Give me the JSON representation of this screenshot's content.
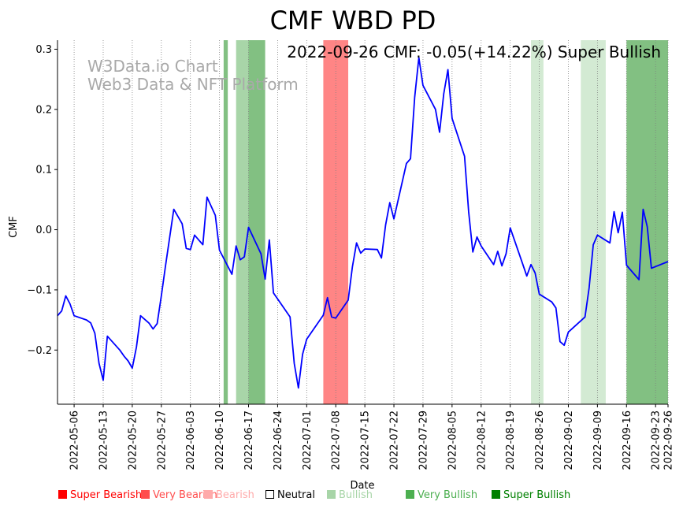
{
  "chart_data": {
    "type": "line",
    "title": "CMF WBD PD",
    "xlabel": "Date",
    "ylabel": "CMF",
    "ylim": [
      -0.29,
      0.315
    ],
    "xlim": [
      "2022-05-02",
      "2022-09-26"
    ],
    "grid": "vertical dotted at x ticks",
    "annotation": "2022-09-26 CMF: -0.05(+14.22%) Super Bullish",
    "watermark": [
      "W3Data.io Chart",
      "Web3 Data & NFT Platform"
    ],
    "y_ticks": [
      {
        "value": 0.3,
        "label": "0.3"
      },
      {
        "value": 0.2,
        "label": "0.2"
      },
      {
        "value": 0.1,
        "label": "0.1"
      },
      {
        "value": 0.0,
        "label": "0.0"
      },
      {
        "value": -0.1,
        "label": "−0.1"
      },
      {
        "value": -0.2,
        "label": "−0.2"
      }
    ],
    "x_ticks": [
      "2022-05-06",
      "2022-05-13",
      "2022-05-20",
      "2022-05-27",
      "2022-06-03",
      "2022-06-10",
      "2022-06-17",
      "2022-06-24",
      "2022-07-01",
      "2022-07-08",
      "2022-07-15",
      "2022-07-22",
      "2022-07-29",
      "2022-08-05",
      "2022-08-12",
      "2022-08-19",
      "2022-08-26",
      "2022-09-02",
      "2022-09-09",
      "2022-09-16",
      "2022-09-23",
      "2022-09-26"
    ],
    "series": [
      {
        "name": "CMF",
        "color": "#0000ff",
        "points": [
          [
            "2022-05-02",
            -0.143
          ],
          [
            "2022-05-03",
            -0.135
          ],
          [
            "2022-05-04",
            -0.11
          ],
          [
            "2022-05-05",
            -0.123
          ],
          [
            "2022-05-06",
            -0.143
          ],
          [
            "2022-05-09",
            -0.15
          ],
          [
            "2022-05-10",
            -0.155
          ],
          [
            "2022-05-11",
            -0.172
          ],
          [
            "2022-05-12",
            -0.222
          ],
          [
            "2022-05-13",
            -0.25
          ],
          [
            "2022-05-14",
            -0.177
          ],
          [
            "2022-05-17",
            -0.2
          ],
          [
            "2022-05-18",
            -0.21
          ],
          [
            "2022-05-19",
            -0.218
          ],
          [
            "2022-05-20",
            -0.23
          ],
          [
            "2022-05-21",
            -0.195
          ],
          [
            "2022-05-22",
            -0.143
          ],
          [
            "2022-05-24",
            -0.155
          ],
          [
            "2022-05-25",
            -0.165
          ],
          [
            "2022-05-26",
            -0.156
          ],
          [
            "2022-05-27",
            -0.11
          ],
          [
            "2022-05-28",
            -0.06
          ],
          [
            "2022-05-30",
            0.034
          ],
          [
            "2022-06-01",
            0.01
          ],
          [
            "2022-06-02",
            -0.031
          ],
          [
            "2022-06-03",
            -0.033
          ],
          [
            "2022-06-04",
            -0.009
          ],
          [
            "2022-06-06",
            -0.025
          ],
          [
            "2022-06-07",
            0.054
          ],
          [
            "2022-06-09",
            0.024
          ],
          [
            "2022-06-10",
            -0.034
          ],
          [
            "2022-06-13",
            -0.074
          ],
          [
            "2022-06-14",
            -0.027
          ],
          [
            "2022-06-15",
            -0.05
          ],
          [
            "2022-06-16",
            -0.045
          ],
          [
            "2022-06-17",
            0.004
          ],
          [
            "2022-06-20",
            -0.04
          ],
          [
            "2022-06-21",
            -0.082
          ],
          [
            "2022-06-22",
            -0.017
          ],
          [
            "2022-06-23",
            -0.105
          ],
          [
            "2022-06-27",
            -0.145
          ],
          [
            "2022-06-28",
            -0.222
          ],
          [
            "2022-06-29",
            -0.263
          ],
          [
            "2022-06-30",
            -0.207
          ],
          [
            "2022-07-01",
            -0.182
          ],
          [
            "2022-07-05",
            -0.142
          ],
          [
            "2022-07-06",
            -0.113
          ],
          [
            "2022-07-07",
            -0.145
          ],
          [
            "2022-07-08",
            -0.147
          ],
          [
            "2022-07-11",
            -0.117
          ],
          [
            "2022-07-12",
            -0.062
          ],
          [
            "2022-07-13",
            -0.022
          ],
          [
            "2022-07-14",
            -0.039
          ],
          [
            "2022-07-15",
            -0.032
          ],
          [
            "2022-07-18",
            -0.033
          ],
          [
            "2022-07-19",
            -0.047
          ],
          [
            "2022-07-20",
            0.008
          ],
          [
            "2022-07-21",
            0.045
          ],
          [
            "2022-07-22",
            0.018
          ],
          [
            "2022-07-25",
            0.11
          ],
          [
            "2022-07-26",
            0.118
          ],
          [
            "2022-07-27",
            0.22
          ],
          [
            "2022-07-28",
            0.286
          ],
          [
            "2022-07-29",
            0.24
          ],
          [
            "2022-08-01",
            0.2
          ],
          [
            "2022-08-02",
            0.162
          ],
          [
            "2022-08-03",
            0.226
          ],
          [
            "2022-08-04",
            0.266
          ],
          [
            "2022-08-05",
            0.185
          ],
          [
            "2022-08-08",
            0.122
          ],
          [
            "2022-08-09",
            0.03
          ],
          [
            "2022-08-10",
            -0.037
          ],
          [
            "2022-08-11",
            -0.012
          ],
          [
            "2022-08-12",
            -0.027
          ],
          [
            "2022-08-15",
            -0.058
          ],
          [
            "2022-08-16",
            -0.036
          ],
          [
            "2022-08-17",
            -0.06
          ],
          [
            "2022-08-18",
            -0.04
          ],
          [
            "2022-08-19",
            0.003
          ],
          [
            "2022-08-22",
            -0.057
          ],
          [
            "2022-08-23",
            -0.077
          ],
          [
            "2022-08-24",
            -0.058
          ],
          [
            "2022-08-25",
            -0.072
          ],
          [
            "2022-08-26",
            -0.107
          ],
          [
            "2022-08-29",
            -0.12
          ],
          [
            "2022-08-30",
            -0.13
          ],
          [
            "2022-08-31",
            -0.186
          ],
          [
            "2022-09-01",
            -0.192
          ],
          [
            "2022-09-02",
            -0.17
          ],
          [
            "2022-09-06",
            -0.145
          ],
          [
            "2022-09-07",
            -0.097
          ],
          [
            "2022-09-08",
            -0.025
          ],
          [
            "2022-09-09",
            -0.009
          ],
          [
            "2022-09-12",
            -0.022
          ],
          [
            "2022-09-13",
            0.03
          ],
          [
            "2022-09-14",
            -0.005
          ],
          [
            "2022-09-15",
            0.029
          ],
          [
            "2022-09-16",
            -0.059
          ],
          [
            "2022-09-19",
            -0.083
          ],
          [
            "2022-09-20",
            0.034
          ],
          [
            "2022-09-21",
            0.005
          ],
          [
            "2022-09-22",
            -0.064
          ],
          [
            "2022-09-26",
            -0.053
          ]
        ]
      }
    ],
    "bands": [
      {
        "start": "2022-06-11",
        "end": "2022-06-12",
        "category": "Very Bullish",
        "color": "#3f9e3f",
        "opacity": 0.65
      },
      {
        "start": "2022-06-14",
        "end": "2022-06-17",
        "category": "Bullish",
        "color": "#a8d5a8",
        "opacity": 1
      },
      {
        "start": "2022-06-17",
        "end": "2022-06-21",
        "category": "Very Bullish",
        "color": "#3f9e3f",
        "opacity": 0.65
      },
      {
        "start": "2022-07-05",
        "end": "2022-07-11",
        "category": "Super Bearish",
        "color": "#ff0000",
        "opacity": 0.48
      },
      {
        "start": "2022-08-24",
        "end": "2022-08-27",
        "category": "Bullish",
        "color": "#a8d5a8",
        "opacity": 0.5
      },
      {
        "start": "2022-09-05",
        "end": "2022-09-11",
        "category": "Bullish",
        "color": "#a8d5a8",
        "opacity": 0.5
      },
      {
        "start": "2022-09-16",
        "end": "2022-09-26",
        "category": "Super Bullish",
        "color": "#3f9e3f",
        "opacity": 0.65
      }
    ],
    "legend": [
      {
        "label": "Super Bearish",
        "color": "#ff0000",
        "text_color": "#ff0000",
        "hollow": false
      },
      {
        "label": "Very Bearish",
        "color": "#ff4d4d",
        "text_color": "#ff4d4d",
        "hollow": false
      },
      {
        "label": "Bearish",
        "color": "#ffaaaa",
        "text_color": "#ffaaaa",
        "hollow": false
      },
      {
        "label": "Neutral",
        "color": "#000000",
        "text_color": "#000000",
        "hollow": true
      },
      {
        "label": "Bullish",
        "color": "#a8d5a8",
        "text_color": "#a8d5a8",
        "hollow": false
      },
      {
        "label": "Very Bullish",
        "color": "#4caf50",
        "text_color": "#4caf50",
        "hollow": false
      },
      {
        "label": "Super Bullish",
        "color": "#008000",
        "text_color": "#008000",
        "hollow": false
      }
    ],
    "legend_placement": "bottom"
  }
}
